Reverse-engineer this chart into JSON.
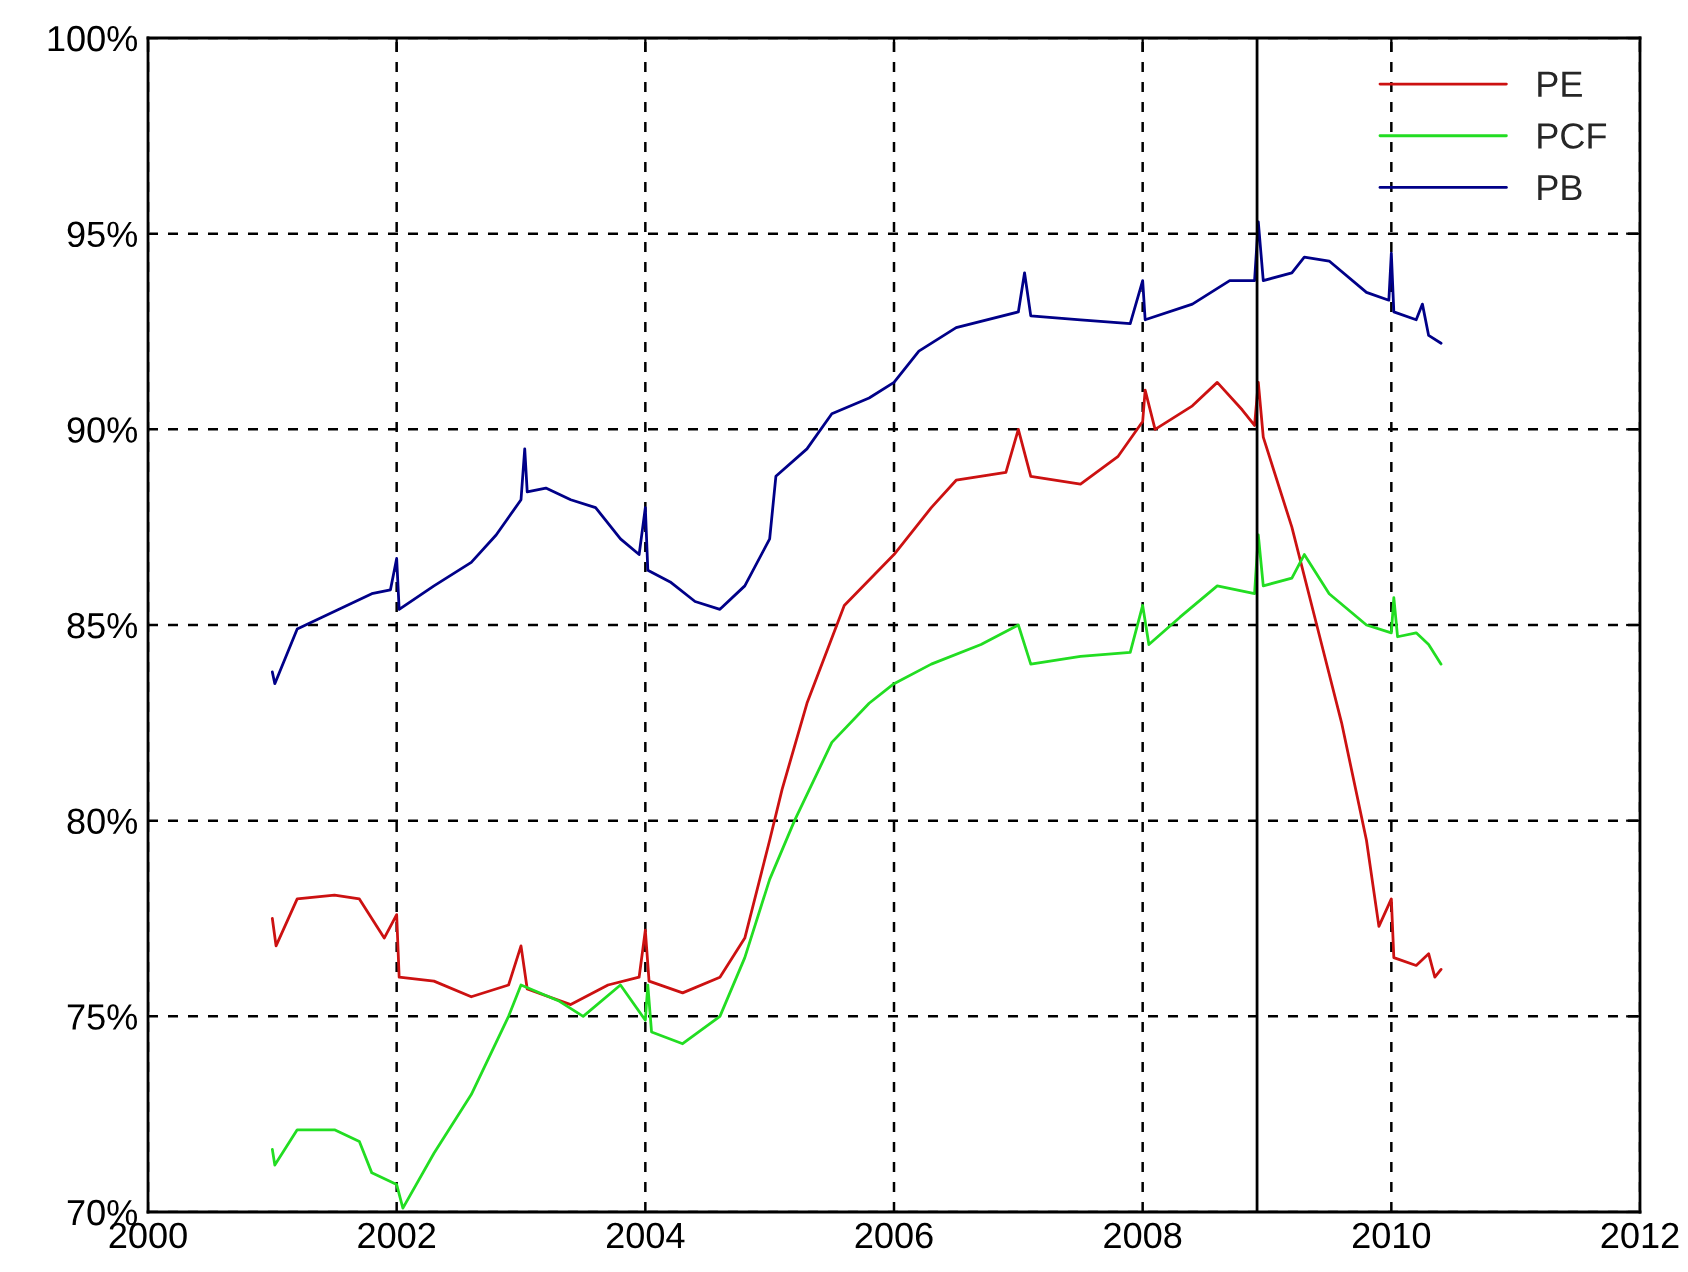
{
  "chart_data": {
    "type": "line",
    "xlim": [
      2000,
      2012
    ],
    "xticks": [
      2000,
      2002,
      2004,
      2006,
      2008,
      2010,
      2012
    ],
    "ylim": [
      70,
      100
    ],
    "yticks": [
      {
        "value": 70,
        "label": "70%"
      },
      {
        "value": 75,
        "label": "75%"
      },
      {
        "value": 80,
        "label": "80%"
      },
      {
        "value": 85,
        "label": "85%"
      },
      {
        "value": 90,
        "label": "90%"
      },
      {
        "value": 95,
        "label": "95%"
      },
      {
        "value": 100,
        "label": "100%"
      }
    ],
    "grid": true,
    "legend": "top right",
    "line_style": "solid",
    "ref_lines": [
      {
        "axis": "x",
        "value": 2008.92,
        "color": "#000000"
      }
    ],
    "series": [
      {
        "name": "PE",
        "color": "#cc1111",
        "x": [
          2001.0,
          2001.03,
          2001.2,
          2001.5,
          2001.7,
          2001.9,
          2002.0,
          2002.02,
          2002.3,
          2002.6,
          2002.9,
          2003.0,
          2003.05,
          2003.4,
          2003.7,
          2003.95,
          2004.0,
          2004.03,
          2004.3,
          2004.6,
          2004.8,
          2005.0,
          2005.1,
          2005.3,
          2005.6,
          2006.0,
          2006.3,
          2006.5,
          2006.9,
          2007.0,
          2007.1,
          2007.5,
          2007.8,
          2008.0,
          2008.02,
          2008.1,
          2008.4,
          2008.6,
          2008.8,
          2008.9,
          2008.93,
          2008.97,
          2009.2,
          2009.4,
          2009.6,
          2009.8,
          2009.9,
          2010.0,
          2010.02,
          2010.2,
          2010.3,
          2010.35,
          2010.4
        ],
        "values": [
          77.5,
          76.8,
          78.0,
          78.1,
          78.0,
          77.0,
          77.6,
          76.0,
          75.9,
          75.5,
          75.8,
          76.8,
          75.7,
          75.3,
          75.8,
          76.0,
          77.2,
          75.9,
          75.6,
          76.0,
          77.0,
          79.5,
          80.8,
          83.0,
          85.5,
          86.8,
          88.0,
          88.7,
          88.9,
          90.0,
          88.8,
          88.6,
          89.3,
          90.2,
          91.0,
          90.0,
          90.6,
          91.2,
          90.5,
          90.1,
          91.2,
          89.8,
          87.5,
          85.0,
          82.5,
          79.5,
          77.3,
          78.0,
          76.5,
          76.3,
          76.6,
          76.0,
          76.2
        ]
      },
      {
        "name": "PCF",
        "color": "#22dd22",
        "x": [
          2001.0,
          2001.02,
          2001.2,
          2001.5,
          2001.7,
          2001.8,
          2002.0,
          2002.05,
          2002.3,
          2002.6,
          2002.9,
          2003.0,
          2003.3,
          2003.5,
          2003.8,
          2004.0,
          2004.02,
          2004.05,
          2004.3,
          2004.6,
          2004.8,
          2005.0,
          2005.2,
          2005.5,
          2005.8,
          2006.0,
          2006.3,
          2006.7,
          2007.0,
          2007.1,
          2007.5,
          2007.9,
          2008.0,
          2008.05,
          2008.3,
          2008.6,
          2008.9,
          2008.93,
          2008.97,
          2009.2,
          2009.3,
          2009.5,
          2009.8,
          2010.0,
          2010.02,
          2010.05,
          2010.2,
          2010.3,
          2010.4
        ],
        "values": [
          71.6,
          71.2,
          72.1,
          72.1,
          71.8,
          71.0,
          70.7,
          70.1,
          71.5,
          73.0,
          75.0,
          75.8,
          75.4,
          75.0,
          75.8,
          74.9,
          75.8,
          74.6,
          74.3,
          75.0,
          76.5,
          78.5,
          80.0,
          82.0,
          83.0,
          83.5,
          84.0,
          84.5,
          85.0,
          84.0,
          84.2,
          84.3,
          85.5,
          84.5,
          85.2,
          86.0,
          85.8,
          87.3,
          86.0,
          86.2,
          86.8,
          85.8,
          85.0,
          84.8,
          85.7,
          84.7,
          84.8,
          84.5,
          84.0
        ]
      },
      {
        "name": "PB",
        "color": "#000088",
        "x": [
          2001.0,
          2001.02,
          2001.2,
          2001.4,
          2001.6,
          2001.8,
          2001.95,
          2002.0,
          2002.02,
          2002.3,
          2002.6,
          2002.8,
          2003.0,
          2003.03,
          2003.05,
          2003.2,
          2003.4,
          2003.6,
          2003.8,
          2003.95,
          2004.0,
          2004.02,
          2004.2,
          2004.4,
          2004.6,
          2004.8,
          2005.0,
          2005.05,
          2005.3,
          2005.5,
          2005.8,
          2006.0,
          2006.2,
          2006.5,
          2007.0,
          2007.05,
          2007.1,
          2007.5,
          2007.9,
          2008.0,
          2008.02,
          2008.4,
          2008.7,
          2008.9,
          2008.93,
          2008.97,
          2009.2,
          2009.3,
          2009.5,
          2009.8,
          2009.98,
          2010.0,
          2010.02,
          2010.2,
          2010.25,
          2010.3,
          2010.4
        ],
        "values": [
          83.8,
          83.5,
          84.9,
          85.2,
          85.5,
          85.8,
          85.9,
          86.7,
          85.4,
          86.0,
          86.6,
          87.3,
          88.2,
          89.5,
          88.4,
          88.5,
          88.2,
          88.0,
          87.2,
          86.8,
          88.0,
          86.4,
          86.1,
          85.6,
          85.4,
          86.0,
          87.2,
          88.8,
          89.5,
          90.4,
          90.8,
          91.2,
          92.0,
          92.6,
          93.0,
          94.0,
          92.9,
          92.8,
          92.7,
          93.8,
          92.8,
          93.2,
          93.8,
          93.8,
          95.3,
          93.8,
          94.0,
          94.4,
          94.3,
          93.5,
          93.3,
          94.5,
          93.0,
          92.8,
          93.2,
          92.4,
          92.2
        ]
      }
    ]
  }
}
